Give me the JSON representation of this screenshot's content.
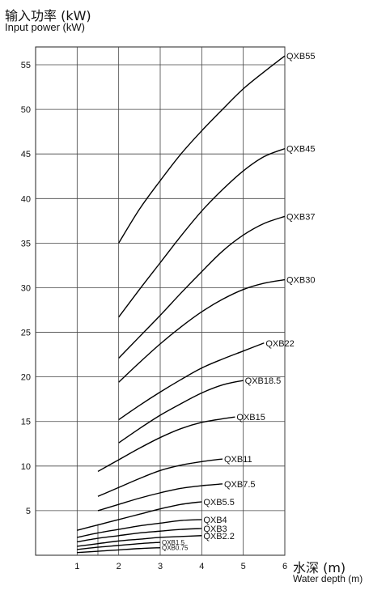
{
  "chart_data": {
    "type": "line",
    "ylabel_zh": "输入功率 (kW)",
    "ylabel": "Input power (kW)",
    "xlabel_zh": "水深 (m)",
    "xlabel": "Water depth (m)",
    "xlim": [
      0,
      6
    ],
    "ylim": [
      0,
      57
    ],
    "x_ticks": [
      1,
      2,
      3,
      4,
      5,
      6
    ],
    "y_ticks": [
      5,
      10,
      15,
      20,
      25,
      30,
      35,
      40,
      45,
      50,
      55
    ],
    "grid": true,
    "series": [
      {
        "name": "QXB55",
        "x": [
          2,
          2.5,
          3,
          3.5,
          4,
          4.5,
          5,
          5.5,
          6
        ],
        "y": [
          35.0,
          38.8,
          42.0,
          45.0,
          47.6,
          50.0,
          52.3,
          54.2,
          56.0
        ]
      },
      {
        "name": "QXB45",
        "x": [
          2,
          2.5,
          3,
          3.5,
          4,
          4.5,
          5,
          5.5,
          6
        ],
        "y": [
          26.7,
          29.8,
          32.8,
          35.8,
          38.6,
          41.0,
          43.1,
          44.7,
          45.6
        ]
      },
      {
        "name": "QXB37",
        "x": [
          2,
          2.5,
          3,
          3.5,
          4,
          4.5,
          5,
          5.5,
          6
        ],
        "y": [
          22.1,
          24.5,
          26.9,
          29.4,
          31.8,
          34.1,
          35.9,
          37.2,
          38.0
        ]
      },
      {
        "name": "QXB30",
        "x": [
          2,
          2.5,
          3,
          3.5,
          4,
          4.5,
          5,
          5.5,
          6
        ],
        "y": [
          19.4,
          21.6,
          23.7,
          25.6,
          27.3,
          28.7,
          29.8,
          30.5,
          30.9
        ]
      },
      {
        "name": "QXB22",
        "x": [
          2,
          2.5,
          3,
          3.5,
          4,
          4.5,
          5,
          5.5
        ],
        "y": [
          15.2,
          16.8,
          18.3,
          19.7,
          21.0,
          22.0,
          22.9,
          23.8
        ]
      },
      {
        "name": "QXB18.5",
        "x": [
          2,
          2.5,
          3,
          3.5,
          4,
          4.5,
          5
        ],
        "y": [
          12.6,
          14.2,
          15.7,
          17.0,
          18.2,
          19.1,
          19.6
        ]
      },
      {
        "name": "QXB15",
        "x": [
          1.5,
          2,
          2.5,
          3,
          3.5,
          4,
          4.5,
          4.8
        ],
        "y": [
          9.4,
          10.7,
          12.0,
          13.2,
          14.2,
          14.9,
          15.3,
          15.5
        ]
      },
      {
        "name": "QXB11",
        "x": [
          1.5,
          2,
          2.5,
          3,
          3.5,
          4,
          4.5
        ],
        "y": [
          6.6,
          7.6,
          8.6,
          9.5,
          10.1,
          10.5,
          10.8
        ]
      },
      {
        "name": "QXB7.5",
        "x": [
          1.5,
          2,
          2.5,
          3,
          3.5,
          4,
          4.5
        ],
        "y": [
          5.0,
          5.7,
          6.4,
          7.0,
          7.5,
          7.8,
          8.0
        ]
      },
      {
        "name": "QXB5.5",
        "x": [
          1,
          1.5,
          2,
          2.5,
          3,
          3.5,
          4
        ],
        "y": [
          2.8,
          3.4,
          4.0,
          4.6,
          5.2,
          5.7,
          6.0
        ]
      },
      {
        "name": "QXB4",
        "x": [
          1,
          1.5,
          2,
          2.5,
          3,
          3.5,
          4
        ],
        "y": [
          2.0,
          2.5,
          2.9,
          3.3,
          3.6,
          3.9,
          4.0
        ]
      },
      {
        "name": "QXB3",
        "x": [
          1,
          1.5,
          2,
          2.5,
          3,
          3.5,
          4
        ],
        "y": [
          1.5,
          1.9,
          2.2,
          2.5,
          2.7,
          2.9,
          3.0
        ]
      },
      {
        "name": "QXB2.2",
        "x": [
          1,
          1.5,
          2,
          2.5,
          3,
          3.5,
          4
        ],
        "y": [
          1.0,
          1.3,
          1.6,
          1.8,
          2.0,
          2.1,
          2.2
        ]
      },
      {
        "name": "QXB1.5",
        "x": [
          1,
          1.5,
          2,
          2.5,
          3
        ],
        "y": [
          0.65,
          0.9,
          1.1,
          1.3,
          1.45
        ]
      },
      {
        "name": "QXB0.75",
        "x": [
          1,
          1.5,
          2,
          2.5,
          3
        ],
        "y": [
          0.3,
          0.45,
          0.6,
          0.75,
          0.85
        ]
      }
    ]
  }
}
